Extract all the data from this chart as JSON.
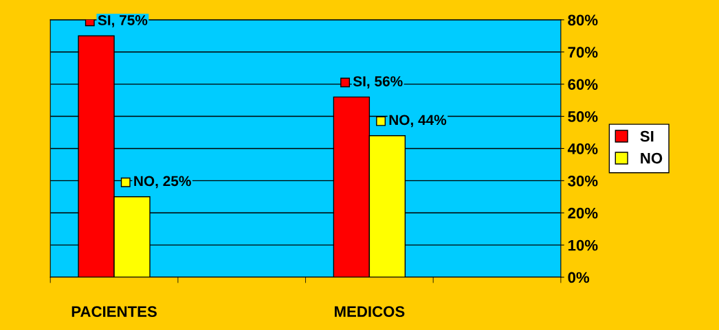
{
  "chart_data": {
    "type": "bar",
    "categories": [
      "PACIENTES",
      null,
      "MEDICOS",
      null
    ],
    "series": [
      {
        "name": "SI",
        "color": "#ff0000",
        "values": [
          75,
          null,
          56,
          null
        ],
        "value_labels": [
          "SI, 75%",
          null,
          "SI, 56%",
          null
        ]
      },
      {
        "name": "NO",
        "color": "#ffff00",
        "values": [
          25,
          null,
          44,
          null
        ],
        "value_labels": [
          "NO, 25%",
          null,
          "NO, 44%",
          null
        ]
      }
    ],
    "ylim": [
      0,
      80
    ],
    "yticks": [
      {
        "value": 0,
        "label": "0%"
      },
      {
        "value": 10,
        "label": "10%"
      },
      {
        "value": 20,
        "label": "20%"
      },
      {
        "value": 30,
        "label": "30%"
      },
      {
        "value": 40,
        "label": "40%"
      },
      {
        "value": 50,
        "label": "50%"
      },
      {
        "value": 60,
        "label": "60%"
      },
      {
        "value": 70,
        "label": "70%"
      },
      {
        "value": 80,
        "label": "80%"
      }
    ],
    "grid": "y",
    "legend": "right"
  }
}
